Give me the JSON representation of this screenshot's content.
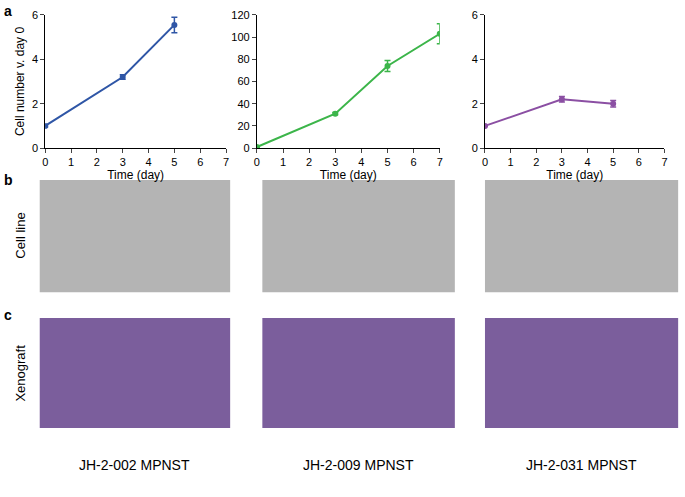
{
  "chart_data": [
    {
      "type": "line",
      "x": [
        0,
        3,
        5
      ],
      "values": [
        1,
        3.2,
        5.55
      ],
      "errors": [
        0.05,
        0.1,
        0.35
      ],
      "color": "#2f56a6",
      "marker": "circle",
      "xlabel": "Time (day)",
      "ylabel": "Cell number v. day 0",
      "xlim": [
        0,
        7
      ],
      "xticks": [
        0,
        1,
        2,
        3,
        4,
        5,
        6,
        7
      ],
      "ylim": [
        0,
        6
      ],
      "yticks": [
        0,
        2,
        4,
        6
      ],
      "grid": false
    },
    {
      "type": "line",
      "x": [
        0,
        3,
        5,
        7
      ],
      "values": [
        1,
        31,
        74,
        103
      ],
      "errors": [
        0.5,
        1,
        5,
        9
      ],
      "color": "#3cb54a",
      "marker": "circle",
      "xlabel": "Time (day)",
      "xlim": [
        0,
        7
      ],
      "xticks": [
        0,
        1,
        2,
        3,
        4,
        5,
        6,
        7
      ],
      "ylim": [
        0,
        120
      ],
      "yticks": [
        0,
        20,
        40,
        60,
        80,
        100,
        120
      ],
      "grid": false
    },
    {
      "type": "line",
      "x": [
        0,
        3,
        5
      ],
      "values": [
        1,
        2.2,
        2.0
      ],
      "errors": [
        0.02,
        0.12,
        0.15
      ],
      "color": "#8b4fa3",
      "marker": "circle",
      "xlabel": "Time (day)",
      "xlim": [
        0,
        7
      ],
      "xticks": [
        0,
        1,
        2,
        3,
        4,
        5,
        6,
        7
      ],
      "ylim": [
        0,
        6
      ],
      "yticks": [
        0,
        2,
        4,
        6
      ],
      "grid": false
    }
  ],
  "figure": {
    "panels": [
      "a",
      "b",
      "c"
    ],
    "rows": [
      "Cell line",
      "Xenograft"
    ],
    "columns": [
      "JH-2-002 MPNST",
      "JH-2-009 MPNST",
      "JH-2-031 MPNST"
    ]
  }
}
